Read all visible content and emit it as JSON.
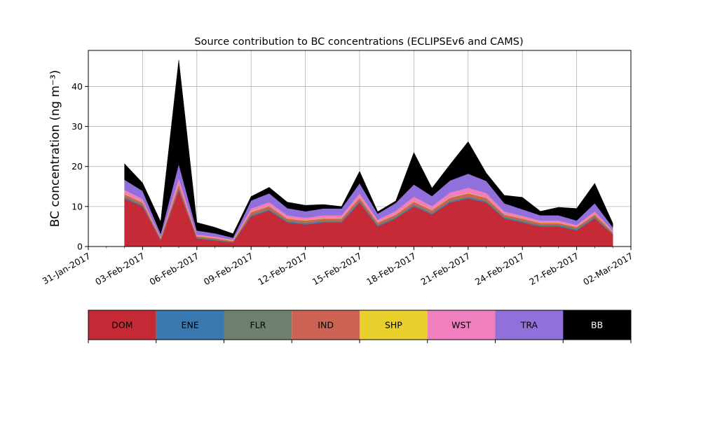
{
  "chart_data": {
    "type": "area",
    "stacked": true,
    "title": "Source contribution to BC concentrations (ECLIPSEv6 and CAMS)",
    "xlabel": "",
    "ylabel": "BC concentration (ng m⁻³)",
    "x_type": "date",
    "xlim": [
      "2017-01-31",
      "2017-03-02"
    ],
    "ylim": [
      0,
      49
    ],
    "grid": true,
    "y_ticks": [
      0,
      10,
      20,
      30,
      40
    ],
    "x_ticks": [
      "2017-01-31",
      "2017-02-03",
      "2017-02-06",
      "2017-02-09",
      "2017-02-12",
      "2017-02-15",
      "2017-02-18",
      "2017-02-21",
      "2017-02-24",
      "2017-02-27",
      "2017-03-02"
    ],
    "x_tick_labels": [
      "31-Jan-2017",
      "03-Feb-2017",
      "06-Feb-2017",
      "09-Feb-2017",
      "12-Feb-2017",
      "15-Feb-2017",
      "18-Feb-2017",
      "21-Feb-2017",
      "24-Feb-2017",
      "27-Feb-2017",
      "02-Mar-2017"
    ],
    "legend_position": "bottom (color bar)",
    "x": [
      "2017-02-02",
      "2017-02-03",
      "2017-02-04",
      "2017-02-05",
      "2017-02-06",
      "2017-02-07",
      "2017-02-08",
      "2017-02-09",
      "2017-02-10",
      "2017-02-11",
      "2017-02-12",
      "2017-02-13",
      "2017-02-14",
      "2017-02-15",
      "2017-02-16",
      "2017-02-17",
      "2017-02-18",
      "2017-02-19",
      "2017-02-20",
      "2017-02-21",
      "2017-02-22",
      "2017-02-23",
      "2017-02-24",
      "2017-02-25",
      "2017-02-26",
      "2017-02-27",
      "2017-02-28",
      "2017-03-01"
    ],
    "series": [
      {
        "name": "DOM",
        "color": "#C62A37",
        "values": [
          12,
          10,
          1.5,
          14,
          2,
          1.5,
          1,
          7.5,
          9,
          6,
          5.5,
          6,
          6,
          11,
          5,
          7,
          10,
          8,
          11,
          12,
          11,
          7,
          6,
          5,
          5,
          4,
          7,
          3
        ]
      },
      {
        "name": "ENE",
        "color": "#3A78B0",
        "values": [
          0.2,
          0.2,
          0.1,
          0.2,
          0.1,
          0.1,
          0.1,
          0.2,
          0.2,
          0.2,
          0.2,
          0.2,
          0.2,
          0.2,
          0.2,
          0.2,
          0.2,
          0.2,
          0.2,
          0.2,
          0.2,
          0.2,
          0.2,
          0.2,
          0.2,
          0.2,
          0.2,
          0.1
        ]
      },
      {
        "name": "FLR",
        "color": "#6E8070",
        "values": [
          0.3,
          0.3,
          0.2,
          0.4,
          0.2,
          0.2,
          0.1,
          0.3,
          0.3,
          0.3,
          0.3,
          0.3,
          0.3,
          0.3,
          0.3,
          0.3,
          0.3,
          0.3,
          0.3,
          0.3,
          0.3,
          0.3,
          0.3,
          0.3,
          0.3,
          0.3,
          0.3,
          0.2
        ]
      },
      {
        "name": "IND",
        "color": "#CC6355",
        "values": [
          0.6,
          0.5,
          0.3,
          0.9,
          0.3,
          0.3,
          0.2,
          0.6,
          0.6,
          0.5,
          0.5,
          0.5,
          0.5,
          0.7,
          0.5,
          0.5,
          0.7,
          0.6,
          0.7,
          0.8,
          0.7,
          0.5,
          0.5,
          0.4,
          0.4,
          0.4,
          0.5,
          0.3
        ]
      },
      {
        "name": "SHP",
        "color": "#E9CF2C",
        "values": [
          0.1,
          0.1,
          0.1,
          0.1,
          0.1,
          0.1,
          0.1,
          0.1,
          0.1,
          0.1,
          0.1,
          0.1,
          0.1,
          0.1,
          0.1,
          0.1,
          0.1,
          0.1,
          0.1,
          0.1,
          0.1,
          0.1,
          0.1,
          0.1,
          0.1,
          0.1,
          0.1,
          0.1
        ]
      },
      {
        "name": "WST",
        "color": "#F07FBD",
        "values": [
          1,
          0.8,
          0.2,
          1.5,
          0.3,
          0.3,
          0.2,
          0.8,
          0.9,
          0.7,
          0.6,
          0.7,
          0.7,
          1,
          0.6,
          0.8,
          1.2,
          0.9,
          1.2,
          1.3,
          1.1,
          0.7,
          0.6,
          0.5,
          0.5,
          0.4,
          0.7,
          0.3
        ]
      },
      {
        "name": "TRA",
        "color": "#9270DB",
        "values": [
          2.5,
          2,
          0.8,
          3.5,
          1,
          0.8,
          0.5,
          2,
          2.2,
          1.8,
          1.6,
          1.7,
          1.7,
          2.5,
          1.5,
          2,
          3,
          2.5,
          3,
          3.5,
          3,
          2,
          1.6,
          1.3,
          1.3,
          1.1,
          2,
          0.8
        ]
      },
      {
        "name": "BB",
        "color": "#000000",
        "values": [
          4,
          2,
          3,
          26,
          2,
          1.5,
          1,
          1,
          1.5,
          1.5,
          1.5,
          1,
          0.5,
          3,
          0.5,
          0.5,
          8,
          2,
          4,
          8,
          2,
          2,
          3,
          1,
          2,
          3,
          5,
          1
        ]
      }
    ]
  }
}
